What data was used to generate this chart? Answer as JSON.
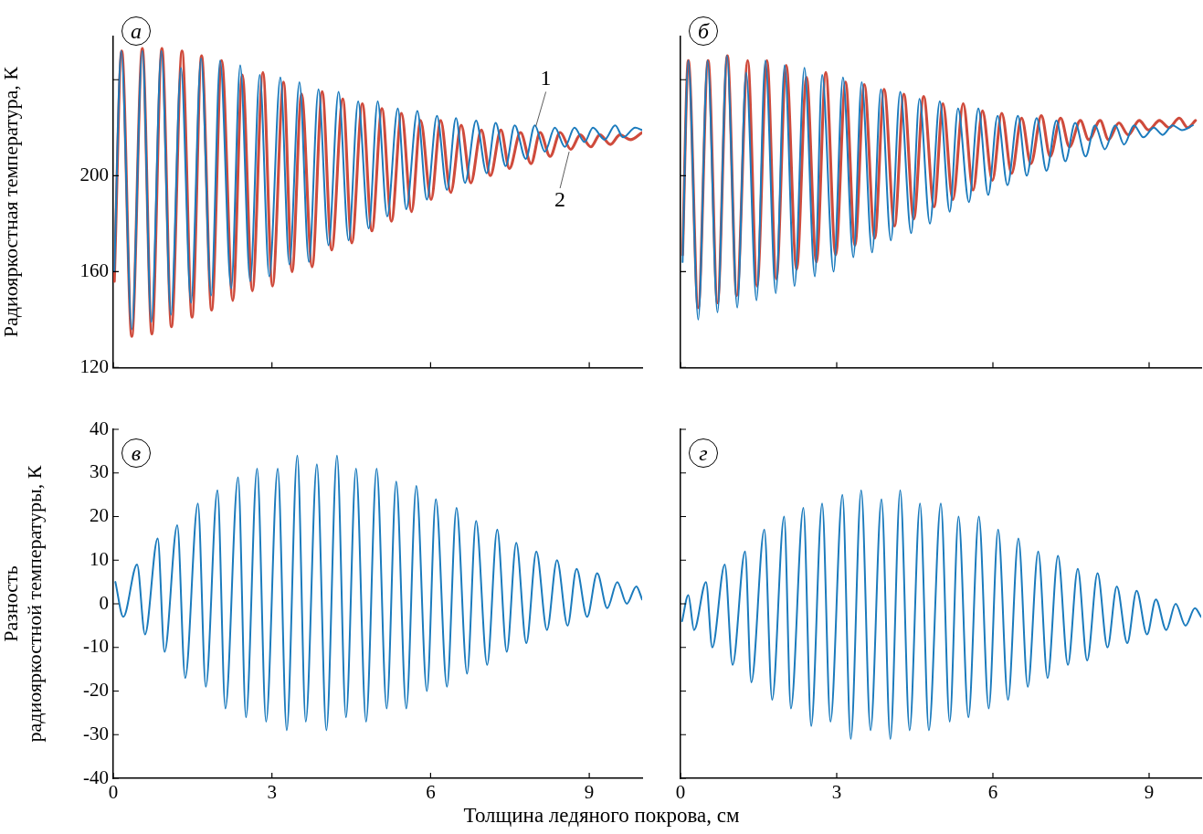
{
  "chart_data": [
    {
      "type": "line",
      "title": "а",
      "ylabel": "Радиояркостная температура, К",
      "xlim": [
        0,
        10
      ],
      "xticks": [
        0,
        3,
        6,
        9
      ],
      "ylim": [
        120,
        258
      ],
      "yticks": [
        120,
        160,
        200,
        {
          "value": 240,
          "label": null
        }
      ],
      "tick_labels": "y",
      "legend": false,
      "grid": false,
      "annotations": [
        {
          "text": "1",
          "x": 7.99,
          "y": 220.5
        },
        {
          "text": "2",
          "x": 8.62,
          "y": 210
        }
      ],
      "series": [
        {
          "color": "#1b7bbd",
          "x": [
            0.02,
            0.15,
            0.35,
            0.55,
            0.72,
            0.91,
            1.09,
            1.28,
            1.47,
            1.66,
            1.85,
            2.02,
            2.23,
            2.4,
            2.59,
            2.77,
            2.95,
            3.16,
            3.33,
            3.52,
            3.7,
            3.88,
            4.07,
            4.26,
            4.45,
            4.63,
            4.83,
            5.0,
            5.18,
            5.38,
            5.54,
            5.75,
            5.93,
            6.12,
            6.31,
            6.48,
            6.65,
            6.86,
            7.06,
            7.23,
            7.42,
            7.59,
            7.8,
            7.97,
            8.16,
            8.35,
            8.54,
            8.72,
            8.91,
            9.07,
            9.29,
            9.49,
            9.64,
            9.87,
            10.0
          ],
          "values": [
            160,
            252,
            136,
            252,
            139,
            252,
            142,
            245,
            147,
            249,
            150,
            248,
            153,
            246,
            156,
            242,
            158,
            241,
            163,
            239,
            164,
            236,
            171,
            235,
            173,
            231,
            178,
            231,
            183,
            228,
            186,
            227,
            190,
            225,
            194,
            224,
            197,
            223,
            201,
            222,
            204,
            221,
            207,
            221,
            210,
            220,
            212,
            220,
            214,
            220,
            215,
            221,
            216,
            220,
            219
          ]
        },
        {
          "color": "#cf4b3c",
          "x": [
            0.02,
            0.16,
            0.35,
            0.55,
            0.73,
            0.92,
            1.1,
            1.3,
            1.49,
            1.67,
            1.86,
            2.05,
            2.26,
            2.44,
            2.63,
            2.83,
            3.01,
            3.22,
            3.38,
            3.56,
            3.76,
            3.95,
            4.13,
            4.34,
            4.51,
            4.71,
            4.89,
            5.08,
            5.26,
            5.45,
            5.64,
            5.81,
            6.01,
            6.19,
            6.38,
            6.58,
            6.76,
            6.96,
            7.13,
            7.33,
            7.49,
            7.7,
            7.9,
            8.07,
            8.26,
            8.45,
            8.65,
            8.83,
            9.03,
            9.2,
            9.4,
            9.58,
            9.78,
            10.0
          ],
          "values": [
            156,
            252,
            133,
            253,
            134,
            253,
            137,
            252,
            141,
            250,
            144,
            248,
            148,
            242,
            152,
            243,
            154,
            239,
            160,
            234,
            162,
            235,
            169,
            232,
            172,
            230,
            177,
            228,
            181,
            226,
            185,
            223,
            190,
            223,
            193,
            221,
            197,
            219,
            200,
            219,
            203,
            218,
            205,
            218,
            208,
            218,
            211,
            217,
            212,
            217,
            213,
            217,
            215,
            218
          ]
        }
      ]
    },
    {
      "type": "line",
      "title": "б",
      "xlim": [
        0,
        10
      ],
      "xticks": [
        0,
        3,
        6,
        9
      ],
      "ylim": [
        120,
        258
      ],
      "yticks": [
        120,
        160,
        200,
        240
      ],
      "tick_labels": false,
      "legend": false,
      "grid": false,
      "series": [
        {
          "color": "#1b7bbd",
          "x": [
            0.04,
            0.15,
            0.34,
            0.52,
            0.71,
            0.89,
            1.09,
            1.26,
            1.46,
            1.63,
            1.83,
            2.0,
            2.19,
            2.38,
            2.58,
            2.72,
            2.94,
            3.12,
            3.32,
            3.48,
            3.68,
            3.85,
            4.04,
            4.22,
            4.43,
            4.59,
            4.79,
            4.98,
            5.17,
            5.33,
            5.54,
            5.72,
            5.91,
            6.09,
            6.28,
            6.48,
            6.65,
            6.84,
            7.03,
            7.22,
            7.39,
            7.58,
            7.78,
            7.96,
            8.15,
            8.35,
            8.52,
            8.71,
            8.89,
            9.09,
            9.26,
            9.45,
            9.63,
            9.84
          ],
          "values": [
            164,
            248,
            140,
            248,
            143,
            250,
            145,
            243,
            148,
            248,
            151,
            246,
            154,
            245,
            158,
            242,
            160,
            241,
            166,
            239,
            168,
            236,
            173,
            235,
            176,
            232,
            180,
            231,
            185,
            228,
            189,
            228,
            192,
            225,
            196,
            225,
            200,
            224,
            202,
            223,
            206,
            222,
            208,
            221,
            211,
            221,
            213,
            221,
            216,
            220,
            217,
            221,
            219,
            221
          ]
        },
        {
          "color": "#cf4b3c",
          "x": [
            0.04,
            0.15,
            0.34,
            0.53,
            0.71,
            0.9,
            1.08,
            1.29,
            1.47,
            1.66,
            1.84,
            2.03,
            2.23,
            2.42,
            2.61,
            2.79,
            2.98,
            3.17,
            3.35,
            3.53,
            3.73,
            3.91,
            4.11,
            4.29,
            4.48,
            4.67,
            4.87,
            5.04,
            5.23,
            5.43,
            5.62,
            5.8,
            5.99,
            6.17,
            6.36,
            6.55,
            6.73,
            6.93,
            7.1,
            7.3,
            7.47,
            7.68,
            7.84,
            8.06,
            8.22,
            8.42,
            8.6,
            8.81,
            8.99,
            9.2,
            9.38,
            9.58,
            9.74,
            9.89
          ],
          "values": [
            167,
            248,
            145,
            248,
            147,
            250,
            150,
            248,
            154,
            248,
            157,
            246,
            161,
            241,
            164,
            243,
            167,
            239,
            171,
            238,
            174,
            236,
            179,
            234,
            182,
            233,
            187,
            230,
            190,
            230,
            194,
            227,
            198,
            226,
            201,
            224,
            205,
            225,
            208,
            224,
            212,
            223,
            215,
            223,
            215,
            222,
            217,
            223,
            219,
            223,
            220,
            224,
            220,
            223
          ]
        }
      ]
    },
    {
      "type": "line",
      "title": "в",
      "ylabel": "Разность радиояркостной температуры, К",
      "xlabel": "Толщина ледяного покрова, см",
      "xlim": [
        0,
        10
      ],
      "xticks": [
        0,
        3,
        6,
        9
      ],
      "ylim": [
        -40,
        40
      ],
      "yticks": [
        -40,
        -30,
        -20,
        -10,
        0,
        10,
        20,
        30,
        40
      ],
      "legend": false,
      "grid": false,
      "series": [
        {
          "color": "#1b7bbd",
          "x": [
            0.04,
            0.19,
            0.45,
            0.6,
            0.84,
            0.97,
            1.21,
            1.36,
            1.6,
            1.75,
            1.97,
            2.12,
            2.36,
            2.51,
            2.72,
            2.89,
            3.11,
            3.28,
            3.48,
            3.64,
            3.85,
            4.03,
            4.23,
            4.4,
            4.59,
            4.78,
            4.98,
            5.17,
            5.35,
            5.54,
            5.73,
            5.93,
            6.1,
            6.31,
            6.49,
            6.69,
            6.86,
            7.07,
            7.26,
            7.44,
            7.62,
            7.81,
            8.0,
            8.2,
            8.39,
            8.59,
            8.76,
            8.96,
            9.15,
            9.34,
            9.53,
            9.71,
            9.89,
            10.0
          ],
          "values": [
            5,
            -3,
            9,
            -7,
            15,
            -11,
            18,
            -17,
            23,
            -19,
            26,
            -24,
            29,
            -26,
            31,
            -27,
            31,
            -29,
            34,
            -27,
            32,
            -29,
            34,
            -26,
            31,
            -27,
            31,
            -24,
            28,
            -24,
            27,
            -20,
            24,
            -19,
            22,
            -16,
            19,
            -14,
            17,
            -11,
            14,
            -9,
            12,
            -6,
            10,
            -5,
            8,
            -3,
            7,
            -1,
            5,
            0,
            4,
            1
          ]
        }
      ]
    },
    {
      "type": "line",
      "title": "г",
      "xlim": [
        0,
        10
      ],
      "xticks": [
        0,
        3,
        6,
        9
      ],
      "ylim": [
        -40,
        40
      ],
      "yticks": [
        -40,
        -30,
        -20,
        -10,
        0,
        10,
        20,
        30,
        40
      ],
      "tick_labels": "x",
      "legend": false,
      "grid": false,
      "series": [
        {
          "color": "#1b7bbd",
          "x": [
            0.03,
            0.15,
            0.26,
            0.49,
            0.61,
            0.85,
            1.0,
            1.24,
            1.36,
            1.61,
            1.76,
            1.99,
            2.12,
            2.36,
            2.51,
            2.72,
            2.88,
            3.11,
            3.27,
            3.47,
            3.65,
            3.86,
            4.03,
            4.22,
            4.4,
            4.6,
            4.77,
            5.0,
            5.17,
            5.34,
            5.53,
            5.73,
            5.92,
            6.1,
            6.29,
            6.49,
            6.67,
            6.87,
            7.05,
            7.25,
            7.44,
            7.63,
            7.81,
            8.01,
            8.2,
            8.38,
            8.58,
            8.76,
            8.96,
            9.13,
            9.33,
            9.51,
            9.7,
            9.88,
            10.0
          ],
          "values": [
            -4,
            2,
            -6,
            5,
            -10,
            9,
            -14,
            12,
            -18,
            17,
            -22,
            20,
            -24,
            22,
            -28,
            23,
            -27,
            25,
            -31,
            26,
            -29,
            24,
            -31,
            26,
            -29,
            23,
            -29,
            23,
            -27,
            20,
            -26,
            20,
            -24,
            17,
            -22,
            15,
            -19,
            12,
            -17,
            11,
            -14,
            8,
            -13,
            7,
            -10,
            4,
            -9,
            3,
            -7,
            1,
            -6,
            0,
            -5,
            -1,
            -3
          ]
        }
      ]
    }
  ]
}
